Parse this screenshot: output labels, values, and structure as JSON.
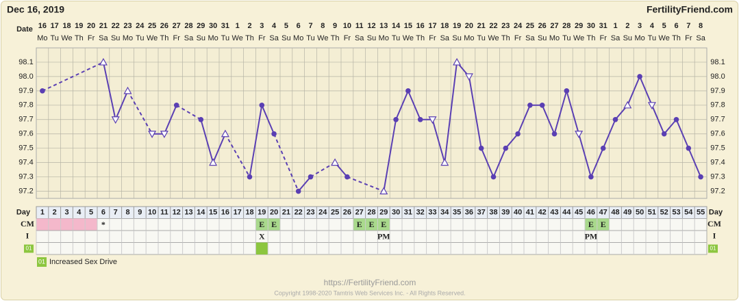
{
  "header": {
    "date": "Dec 16, 2019",
    "site": "FertilityFriend.com"
  },
  "chart_data": {
    "type": "line",
    "x_label": "Date",
    "dates": [
      16,
      17,
      18,
      19,
      20,
      21,
      22,
      23,
      24,
      25,
      26,
      27,
      28,
      29,
      30,
      31,
      1,
      2,
      3,
      4,
      5,
      6,
      7,
      8,
      9,
      10,
      11,
      12,
      13,
      14,
      15,
      16,
      17,
      18,
      19,
      20,
      21,
      22,
      23,
      24,
      25,
      26,
      27,
      28,
      29,
      30,
      31,
      1,
      2,
      3,
      4,
      5,
      6,
      7,
      8
    ],
    "weekdays": [
      "Mo",
      "Tu",
      "We",
      "Th",
      "Fr",
      "Sa",
      "Su",
      "Mo",
      "Tu",
      "We",
      "Th",
      "Fr",
      "Sa",
      "Su",
      "Mo",
      "Tu",
      "We",
      "Th",
      "Fr",
      "Sa",
      "Su",
      "Mo",
      "Tu",
      "We",
      "Th",
      "Fr",
      "Sa",
      "Su",
      "Mo",
      "Tu",
      "We",
      "Th",
      "Fr",
      "Sa",
      "Su",
      "Mo",
      "Tu",
      "We",
      "Th",
      "Fr",
      "Sa",
      "Su",
      "Mo",
      "Tu",
      "We",
      "Th",
      "Fr",
      "Sa",
      "Su",
      "Mo",
      "Tu",
      "We",
      "Th",
      "Fr",
      "Sa"
    ],
    "values": [
      97.9,
      null,
      null,
      null,
      null,
      98.1,
      97.7,
      97.9,
      null,
      97.6,
      97.6,
      97.8,
      null,
      97.7,
      97.4,
      97.6,
      null,
      97.3,
      97.8,
      97.6,
      null,
      97.2,
      97.3,
      null,
      97.4,
      97.3,
      null,
      null,
      97.2,
      97.7,
      97.9,
      97.7,
      97.7,
      97.4,
      98.1,
      98.0,
      97.5,
      97.3,
      97.5,
      97.6,
      97.8,
      97.8,
      97.6,
      97.9,
      97.6,
      97.3,
      97.5,
      97.7,
      97.8,
      98.0,
      97.8,
      97.6,
      97.7,
      97.5,
      97.3
    ],
    "markers": [
      "dot",
      null,
      null,
      null,
      null,
      "up",
      "down",
      "up",
      null,
      "down",
      "down",
      "dot",
      null,
      "dot",
      "up",
      "up",
      null,
      "dot",
      "dot",
      "dot",
      null,
      "dot",
      "dot",
      null,
      "up",
      "dot",
      null,
      null,
      "up",
      "dot",
      "dot",
      "dot",
      "down",
      "up",
      "up",
      "down",
      "dot",
      "dot",
      "dot",
      "dot",
      "dot",
      "dot",
      "dot",
      "dot",
      "down",
      "dot",
      "dot",
      "dot",
      "up",
      "dot",
      "down",
      "dot",
      "dot",
      "dot",
      "dot"
    ],
    "color": "#5a3fb3",
    "ylim": [
      97.15,
      98.2
    ],
    "yticks": [
      97.2,
      97.3,
      97.4,
      97.5,
      97.6,
      97.7,
      97.8,
      97.9,
      {
        "value": 98,
        "label": "98.0"
      },
      98.1
    ],
    "grid": true
  },
  "cycle_table": {
    "day_label": "Day",
    "days": [
      1,
      2,
      3,
      4,
      5,
      6,
      7,
      8,
      9,
      10,
      11,
      12,
      13,
      14,
      15,
      16,
      17,
      18,
      19,
      20,
      21,
      22,
      23,
      24,
      25,
      26,
      27,
      28,
      29,
      30,
      31,
      32,
      33,
      34,
      35,
      36,
      37,
      38,
      39,
      40,
      41,
      42,
      43,
      44,
      45,
      46,
      47,
      48,
      49,
      50,
      51,
      52,
      53,
      54,
      55
    ],
    "rows": [
      {
        "label": "CM",
        "cells": [
          null,
          null,
          null,
          null,
          null,
          "*",
          null,
          null,
          null,
          null,
          null,
          null,
          null,
          null,
          null,
          null,
          null,
          null,
          "E",
          "E",
          null,
          null,
          null,
          null,
          null,
          null,
          "E",
          "E",
          "E",
          null,
          null,
          null,
          null,
          null,
          null,
          null,
          null,
          null,
          null,
          null,
          null,
          null,
          null,
          null,
          null,
          "E",
          "E",
          null,
          null,
          null,
          null,
          null,
          null,
          null,
          null
        ],
        "fills": [
          "#f4b8cb",
          "#f4b8cb",
          "#f4b8cb",
          "#f4b8cb",
          "#f4b8cb",
          null,
          null,
          null,
          null,
          null,
          null,
          null,
          null,
          null,
          null,
          null,
          null,
          null,
          "#a9d98c",
          "#a9d98c",
          null,
          null,
          null,
          null,
          null,
          null,
          "#a9d98c",
          "#a9d98c",
          "#a9d98c",
          null,
          null,
          null,
          null,
          null,
          null,
          null,
          null,
          null,
          null,
          null,
          null,
          null,
          null,
          null,
          null,
          "#a9d98c",
          "#a9d98c",
          null,
          null,
          null,
          null,
          null,
          null,
          null,
          null
        ]
      },
      {
        "label": "I",
        "cells": [
          null,
          null,
          null,
          null,
          null,
          null,
          null,
          null,
          null,
          null,
          null,
          null,
          null,
          null,
          null,
          null,
          null,
          null,
          "X",
          null,
          null,
          null,
          null,
          null,
          null,
          null,
          null,
          null,
          "PM",
          null,
          null,
          null,
          null,
          null,
          null,
          null,
          null,
          null,
          null,
          null,
          null,
          null,
          null,
          null,
          null,
          "PM",
          null,
          null,
          null,
          null,
          null,
          null,
          null,
          null,
          null
        ]
      },
      {
        "label": "01",
        "fills": [
          null,
          null,
          null,
          null,
          null,
          null,
          null,
          null,
          null,
          null,
          null,
          null,
          null,
          null,
          null,
          null,
          null,
          null,
          "#8cc63f",
          null,
          null,
          null,
          null,
          null,
          null,
          null,
          null,
          null,
          null,
          null,
          null,
          null,
          null,
          null,
          null,
          null,
          null,
          null,
          null,
          null,
          null,
          null,
          null,
          null,
          null,
          null,
          null,
          null,
          null,
          null,
          null,
          null,
          null,
          null,
          null
        ]
      }
    ]
  },
  "legend": {
    "code": "01",
    "text": "Increased Sex Drive"
  },
  "footer": {
    "url": "https://FertilityFriend.com",
    "copyright": "Copyright 1998-2020 Tamtris Web Services Inc. - All Rights Reserved."
  }
}
